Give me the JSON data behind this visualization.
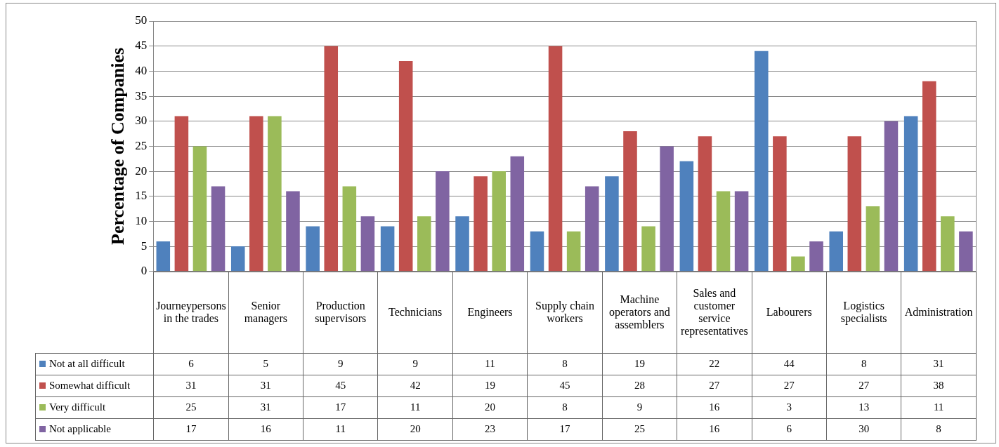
{
  "chart_data": {
    "type": "bar",
    "ylabel": "Percentage of Companies",
    "categories": [
      "Journeypersons in the trades",
      "Senior managers",
      "Production supervisors",
      "Technicians",
      "Engineers",
      "Supply chain workers",
      "Machine operators and assemblers",
      "Sales and customer service representatives",
      "Labourers",
      "Logistics specialists",
      "Administration"
    ],
    "series": [
      {
        "name": "Not at all difficult",
        "color": "#4f81bd",
        "values": [
          6,
          5,
          9,
          9,
          11,
          8,
          19,
          22,
          44,
          8,
          31
        ]
      },
      {
        "name": "Somewhat difficult",
        "color": "#c0504d",
        "values": [
          31,
          31,
          45,
          42,
          19,
          45,
          28,
          27,
          27,
          27,
          38
        ]
      },
      {
        "name": "Very difficult",
        "color": "#9bbb59",
        "values": [
          25,
          31,
          17,
          11,
          20,
          8,
          9,
          16,
          3,
          13,
          11
        ]
      },
      {
        "name": "Not applicable",
        "color": "#8064a2",
        "values": [
          17,
          16,
          11,
          20,
          23,
          17,
          25,
          16,
          6,
          30,
          8
        ]
      }
    ],
    "ylim": [
      0,
      50
    ],
    "yticks": [
      0,
      5,
      10,
      15,
      20,
      25,
      30,
      35,
      40,
      45,
      50
    ],
    "grid": "y",
    "legend": "bottom left",
    "data_labels": true
  }
}
